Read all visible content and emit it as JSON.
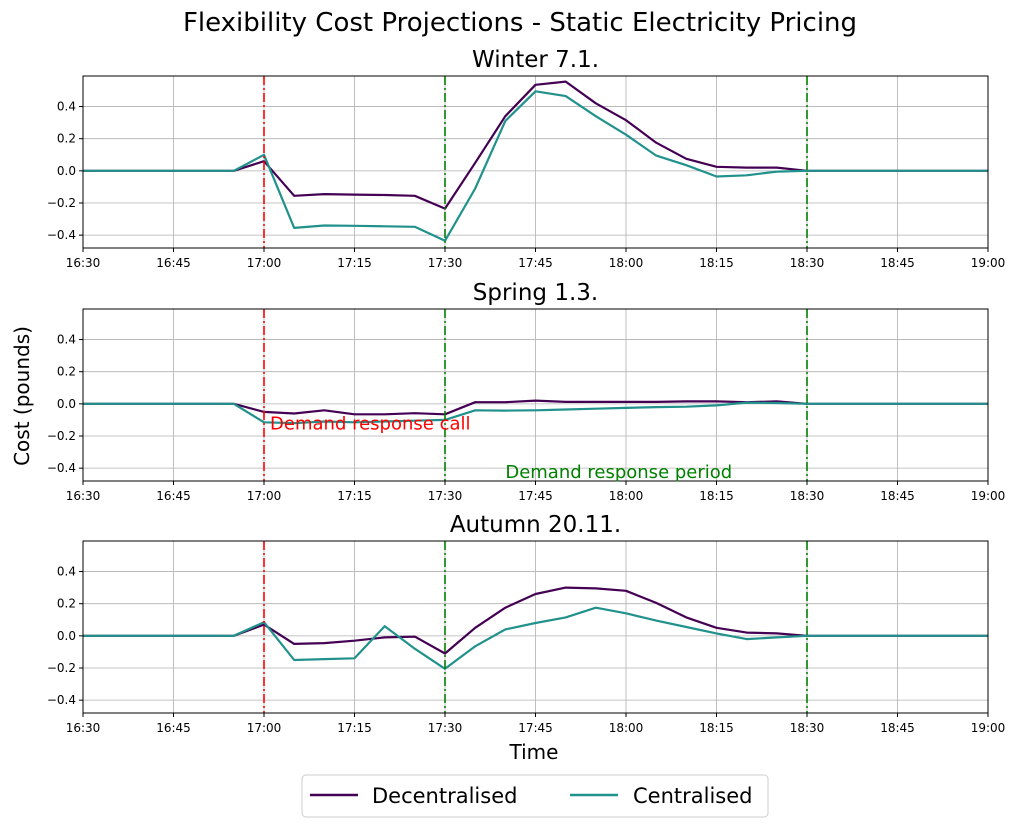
{
  "chart_data": {
    "type": "line",
    "title": "Flexibility Cost Projections - Static Electricity Pricing",
    "xlabel": "Time",
    "ylabel": "Cost (pounds)",
    "grid": true,
    "legend": {
      "position": "bottom-center",
      "columns": 2
    },
    "colors": {
      "Decentralised": "#440154",
      "Centralised": "#21918c",
      "call": "#ff0000",
      "period": "#008000"
    },
    "xticks": [
      "16:30",
      "16:45",
      "17:00",
      "17:15",
      "17:30",
      "17:45",
      "18:00",
      "18:15",
      "18:30",
      "18:45",
      "19:00"
    ],
    "yticks": [
      "−0.4",
      "−0.2",
      "0.0",
      "0.2",
      "0.4"
    ],
    "ylim": [
      -0.48,
      0.59
    ],
    "xlim": [
      "16:30",
      "19:00"
    ],
    "x": [
      "16:30",
      "16:35",
      "16:40",
      "16:45",
      "16:50",
      "16:55",
      "17:00",
      "17:05",
      "17:10",
      "17:15",
      "17:20",
      "17:25",
      "17:30",
      "17:35",
      "17:40",
      "17:45",
      "17:50",
      "17:55",
      "18:00",
      "18:05",
      "18:10",
      "18:15",
      "18:20",
      "18:25",
      "18:30",
      "18:35",
      "18:40",
      "18:45",
      "18:50",
      "18:55",
      "19:00"
    ],
    "series_names": [
      "Decentralised",
      "Centralised"
    ],
    "vlines": [
      {
        "x": "17:00",
        "kind": "call"
      },
      {
        "x": "17:30",
        "kind": "period"
      },
      {
        "x": "18:30",
        "kind": "period"
      }
    ],
    "annotations": [
      {
        "text": "Demand response call",
        "x": "17:01",
        "y": -0.16,
        "panel": 1,
        "kind": "call"
      },
      {
        "text": "Demand response period",
        "x": "17:40",
        "y": -0.46,
        "panel": 1,
        "kind": "period"
      }
    ],
    "panels": [
      {
        "title": "Winter 7.1.",
        "series": [
          {
            "name": "Decentralised",
            "values": [
              0,
              0,
              0,
              0,
              0,
              0,
              0.06,
              -0.155,
              -0.145,
              -0.148,
              -0.15,
              -0.155,
              -0.235,
              0.05,
              0.34,
              0.535,
              0.555,
              0.42,
              0.315,
              0.175,
              0.075,
              0.025,
              0.02,
              0.02,
              0,
              0,
              0,
              0,
              0,
              0,
              0
            ]
          },
          {
            "name": "Centralised",
            "values": [
              0,
              0,
              0,
              0,
              0,
              0,
              0.1,
              -0.355,
              -0.34,
              -0.342,
              -0.345,
              -0.348,
              -0.435,
              -0.11,
              0.31,
              0.495,
              0.465,
              0.34,
              0.225,
              0.095,
              0.035,
              -0.035,
              -0.028,
              -0.005,
              0,
              0,
              0,
              0,
              0,
              0,
              0
            ]
          }
        ]
      },
      {
        "title": "Spring 1.3.",
        "series": [
          {
            "name": "Decentralised",
            "values": [
              0,
              0,
              0,
              0,
              0,
              0,
              -0.05,
              -0.06,
              -0.04,
              -0.065,
              -0.065,
              -0.058,
              -0.065,
              0.01,
              0.01,
              0.02,
              0.012,
              0.012,
              0.012,
              0.012,
              0.015,
              0.015,
              0.01,
              0.015,
              0,
              0,
              0,
              0,
              0,
              0,
              0
            ]
          },
          {
            "name": "Centralised",
            "values": [
              0,
              0,
              0,
              0,
              0,
              0,
              -0.115,
              -0.12,
              -0.11,
              -0.115,
              -0.11,
              -0.105,
              -0.1,
              -0.04,
              -0.042,
              -0.04,
              -0.035,
              -0.03,
              -0.025,
              -0.02,
              -0.018,
              -0.01,
              0.008,
              0.005,
              0,
              0,
              0,
              0,
              0,
              0,
              0
            ]
          }
        ]
      },
      {
        "title": "Autumn 20.11.",
        "series": [
          {
            "name": "Decentralised",
            "values": [
              0,
              0,
              0,
              0,
              0,
              0,
              0.07,
              -0.05,
              -0.045,
              -0.03,
              -0.01,
              -0.005,
              -0.11,
              0.05,
              0.175,
              0.26,
              0.3,
              0.295,
              0.28,
              0.205,
              0.115,
              0.05,
              0.02,
              0.015,
              0,
              0,
              0,
              0,
              0,
              0,
              0
            ]
          },
          {
            "name": "Centralised",
            "values": [
              0,
              0,
              0,
              0,
              0,
              0,
              0.085,
              -0.15,
              -0.145,
              -0.14,
              0.06,
              -0.08,
              -0.205,
              -0.065,
              0.04,
              0.08,
              0.115,
              0.175,
              0.14,
              0.095,
              0.055,
              0.015,
              -0.02,
              -0.01,
              0,
              0,
              0,
              0,
              0,
              0,
              0
            ]
          }
        ]
      }
    ]
  }
}
